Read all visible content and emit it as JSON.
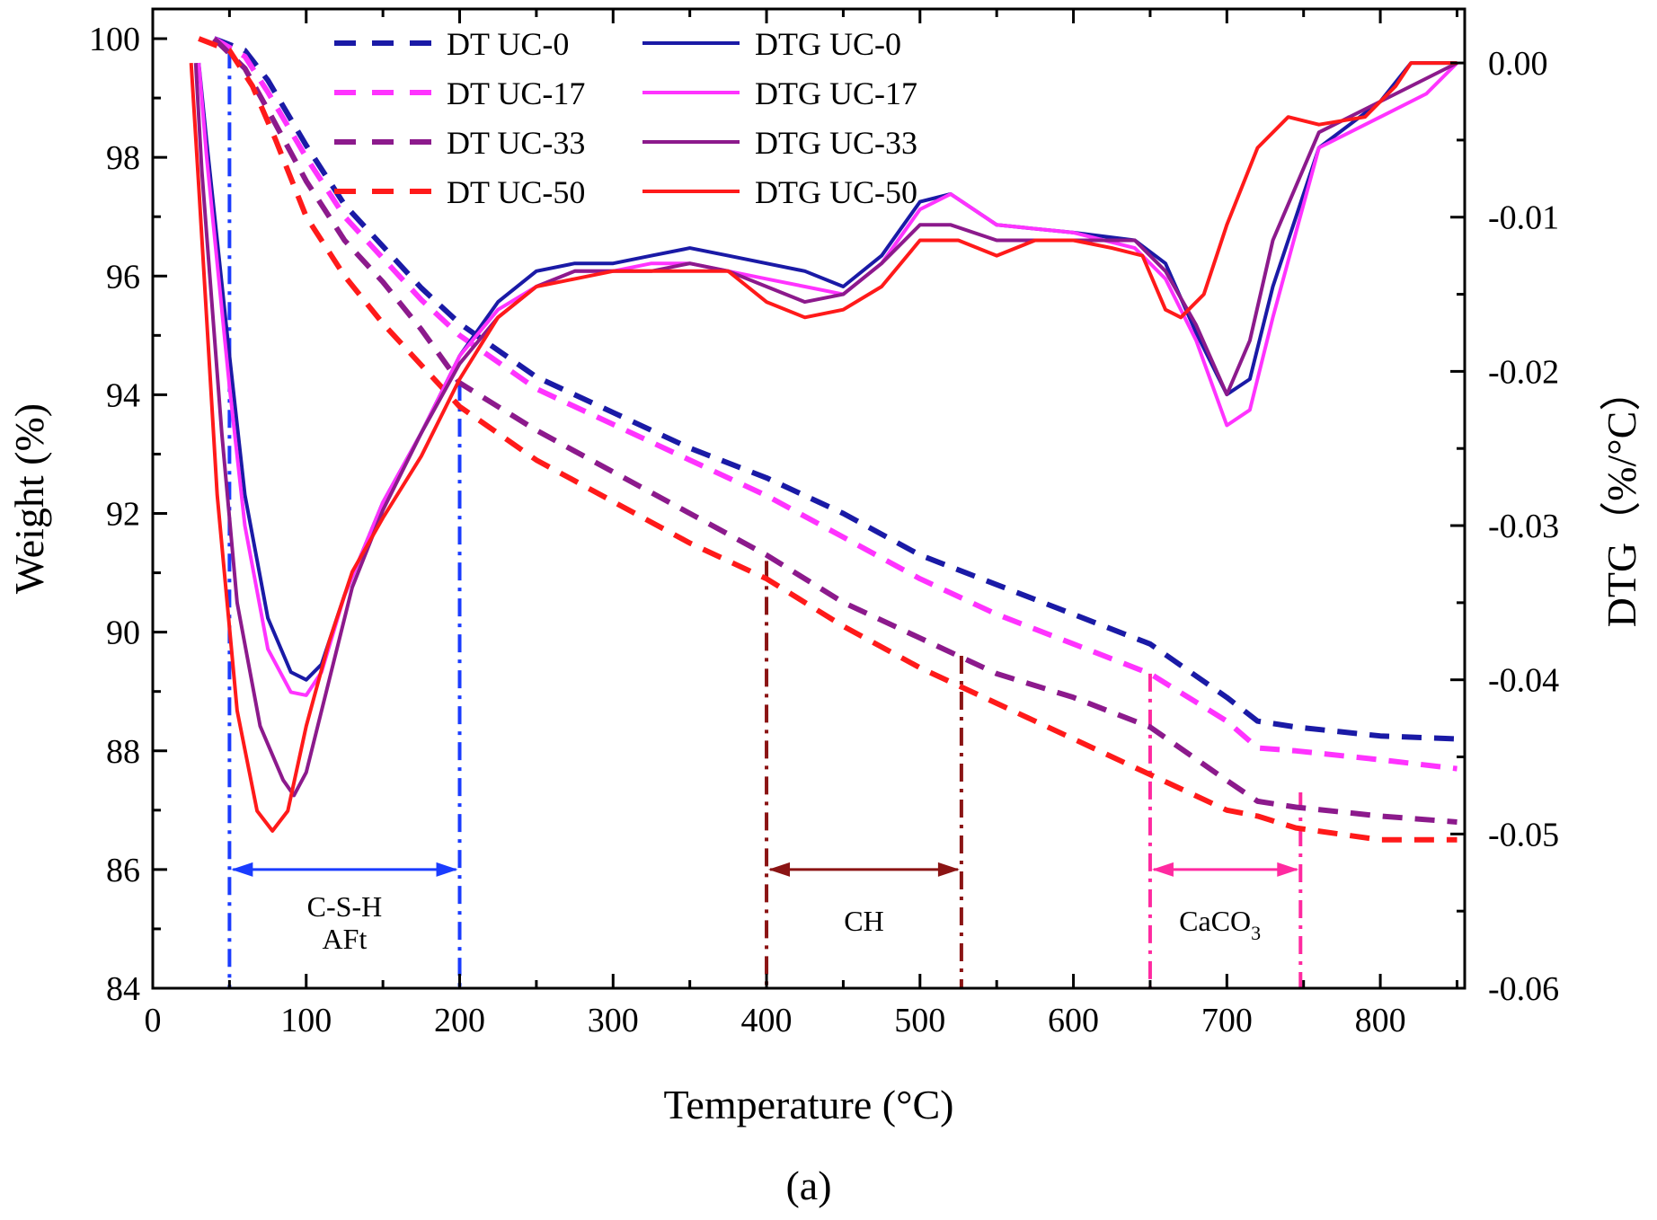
{
  "chart_data": {
    "type": "line",
    "panel_label": "(a)",
    "xlabel": "Temperature (°C)",
    "ylabel_left": "Weight (%)",
    "ylabel_right": "DTG（%/°C）",
    "xlim": [
      0,
      855
    ],
    "ylim_left": [
      84,
      100.5
    ],
    "ylim_right": [
      -0.06,
      0.0035
    ],
    "x_ticks": [
      0,
      100,
      200,
      300,
      400,
      500,
      600,
      700,
      800
    ],
    "y_left_ticks": [
      84,
      86,
      88,
      90,
      92,
      94,
      96,
      98,
      100
    ],
    "y_right_ticks": [
      0.0,
      -0.01,
      -0.02,
      -0.03,
      -0.04,
      -0.05,
      -0.06
    ],
    "y_right_tick_labels": [
      "0.00",
      "-0.01",
      "-0.02",
      "-0.03",
      "-0.04",
      "-0.05",
      "-0.06"
    ],
    "legend": {
      "placement": "top-left",
      "entries": [
        {
          "label": "DT UC-0",
          "style": "dashed"
        },
        {
          "label": "DT UC-17",
          "style": "dashed"
        },
        {
          "label": "DT UC-33",
          "style": "dashed"
        },
        {
          "label": "DT UC-50",
          "style": "dashed"
        },
        {
          "label": "DTG UC-0",
          "style": "solid"
        },
        {
          "label": "DTG UC-17",
          "style": "solid"
        },
        {
          "label": "DTG UC-33",
          "style": "solid"
        },
        {
          "label": "DTG UC-50",
          "style": "solid"
        }
      ]
    },
    "series": [
      {
        "name": "DT UC-0",
        "axis": "left",
        "style": "dashed",
        "color": "#1a1aa6",
        "x": [
          40,
          60,
          75,
          100,
          125,
          150,
          175,
          200,
          250,
          300,
          350,
          400,
          450,
          500,
          550,
          600,
          650,
          700,
          720,
          745,
          800,
          850
        ],
        "y": [
          100.0,
          99.8,
          99.3,
          98.2,
          97.2,
          96.5,
          95.8,
          95.2,
          94.3,
          93.7,
          93.1,
          92.6,
          92.0,
          91.3,
          90.8,
          90.3,
          89.8,
          88.9,
          88.5,
          88.4,
          88.25,
          88.2
        ]
      },
      {
        "name": "DT UC-17",
        "axis": "left",
        "style": "dashed",
        "color": "#ff33ff",
        "x": [
          40,
          60,
          75,
          100,
          125,
          150,
          175,
          200,
          250,
          300,
          350,
          400,
          450,
          500,
          550,
          600,
          650,
          700,
          720,
          745,
          800,
          850
        ],
        "y": [
          100.0,
          99.7,
          99.1,
          98.0,
          97.0,
          96.3,
          95.6,
          95.0,
          94.1,
          93.5,
          92.9,
          92.3,
          91.6,
          90.9,
          90.3,
          89.8,
          89.3,
          88.5,
          88.05,
          88.0,
          87.85,
          87.7
        ]
      },
      {
        "name": "DT UC-33",
        "axis": "left",
        "style": "dashed",
        "color": "#8c1a8c",
        "x": [
          40,
          60,
          75,
          100,
          125,
          150,
          175,
          200,
          250,
          300,
          350,
          400,
          450,
          500,
          550,
          600,
          650,
          700,
          720,
          745,
          800,
          850
        ],
        "y": [
          100.0,
          99.5,
          98.8,
          97.6,
          96.6,
          95.9,
          95.1,
          94.2,
          93.4,
          92.7,
          92.0,
          91.3,
          90.5,
          89.9,
          89.3,
          88.9,
          88.4,
          87.5,
          87.15,
          87.05,
          86.9,
          86.8
        ]
      },
      {
        "name": "DT UC-50",
        "axis": "left",
        "style": "dashed",
        "color": "#ff1a1a",
        "x": [
          30,
          50,
          65,
          80,
          100,
          125,
          150,
          175,
          200,
          250,
          300,
          350,
          400,
          450,
          500,
          550,
          600,
          650,
          700,
          720,
          745,
          800,
          850
        ],
        "y": [
          100.0,
          99.8,
          99.2,
          98.3,
          97.0,
          96.0,
          95.2,
          94.5,
          93.8,
          92.9,
          92.2,
          91.5,
          90.9,
          90.1,
          89.4,
          88.8,
          88.2,
          87.6,
          87.0,
          86.9,
          86.7,
          86.5,
          86.5
        ]
      },
      {
        "name": "DTG UC-0",
        "axis": "right",
        "style": "solid",
        "color": "#1a1aa6",
        "x": [
          30,
          35,
          50,
          60,
          75,
          90,
          100,
          110,
          125,
          150,
          175,
          200,
          225,
          250,
          275,
          300,
          325,
          350,
          375,
          400,
          425,
          450,
          475,
          500,
          520,
          550,
          600,
          640,
          660,
          680,
          700,
          715,
          730,
          760,
          800,
          820,
          850
        ],
        "y": [
          0.0,
          -0.005,
          -0.019,
          -0.028,
          -0.036,
          -0.0395,
          -0.04,
          -0.039,
          -0.0345,
          -0.0285,
          -0.024,
          -0.019,
          -0.0155,
          -0.0135,
          -0.013,
          -0.013,
          -0.0125,
          -0.012,
          -0.0125,
          -0.013,
          -0.0135,
          -0.0145,
          -0.0125,
          -0.009,
          -0.0085,
          -0.0105,
          -0.011,
          -0.0115,
          -0.013,
          -0.0175,
          -0.0215,
          -0.0205,
          -0.0145,
          -0.0055,
          -0.0025,
          0.0,
          0.0
        ]
      },
      {
        "name": "DTG UC-17",
        "axis": "right",
        "style": "solid",
        "color": "#ff33ff",
        "x": [
          30,
          35,
          50,
          60,
          75,
          90,
          100,
          110,
          125,
          150,
          175,
          200,
          225,
          250,
          275,
          300,
          325,
          350,
          375,
          400,
          425,
          450,
          475,
          500,
          520,
          550,
          600,
          640,
          660,
          680,
          700,
          715,
          730,
          760,
          800,
          830,
          850
        ],
        "y": [
          0.0,
          -0.006,
          -0.021,
          -0.03,
          -0.038,
          -0.0408,
          -0.041,
          -0.0395,
          -0.0345,
          -0.0285,
          -0.024,
          -0.019,
          -0.016,
          -0.0145,
          -0.0135,
          -0.0135,
          -0.013,
          -0.013,
          -0.0135,
          -0.014,
          -0.0145,
          -0.015,
          -0.013,
          -0.0095,
          -0.0085,
          -0.0105,
          -0.011,
          -0.012,
          -0.014,
          -0.018,
          -0.0235,
          -0.0225,
          -0.0165,
          -0.0055,
          -0.0035,
          -0.002,
          0.0
        ]
      },
      {
        "name": "DTG UC-33",
        "axis": "right",
        "style": "solid",
        "color": "#8c1a8c",
        "x": [
          28,
          32,
          45,
          55,
          70,
          85,
          92,
          100,
          115,
          130,
          150,
          175,
          200,
          225,
          250,
          275,
          300,
          325,
          350,
          375,
          400,
          425,
          450,
          475,
          500,
          520,
          550,
          600,
          640,
          660,
          680,
          700,
          715,
          730,
          760,
          800,
          850
        ],
        "y": [
          0.0,
          -0.007,
          -0.024,
          -0.035,
          -0.043,
          -0.0465,
          -0.0475,
          -0.046,
          -0.04,
          -0.034,
          -0.029,
          -0.024,
          -0.0195,
          -0.0165,
          -0.0145,
          -0.0135,
          -0.0135,
          -0.0135,
          -0.013,
          -0.0135,
          -0.0145,
          -0.0155,
          -0.015,
          -0.013,
          -0.0105,
          -0.0105,
          -0.0115,
          -0.0115,
          -0.0115,
          -0.0135,
          -0.017,
          -0.0215,
          -0.018,
          -0.0115,
          -0.0045,
          -0.0025,
          0.0
        ]
      },
      {
        "name": "DTG UC-50",
        "axis": "right",
        "style": "solid",
        "color": "#ff1a1a",
        "x": [
          25,
          30,
          42,
          55,
          68,
          78,
          88,
          100,
          115,
          130,
          150,
          175,
          200,
          225,
          250,
          275,
          300,
          325,
          350,
          375,
          400,
          425,
          450,
          475,
          500,
          525,
          550,
          575,
          600,
          625,
          645,
          660,
          670,
          685,
          700,
          720,
          740,
          760,
          790,
          810,
          820,
          850
        ],
        "y": [
          0.0,
          -0.008,
          -0.028,
          -0.042,
          -0.0485,
          -0.0498,
          -0.0485,
          -0.043,
          -0.0375,
          -0.033,
          -0.0295,
          -0.0255,
          -0.0205,
          -0.0165,
          -0.0145,
          -0.014,
          -0.0135,
          -0.0135,
          -0.0135,
          -0.0135,
          -0.0155,
          -0.0165,
          -0.016,
          -0.0145,
          -0.0115,
          -0.0115,
          -0.0125,
          -0.0115,
          -0.0115,
          -0.012,
          -0.0125,
          -0.016,
          -0.0165,
          -0.015,
          -0.0105,
          -0.0055,
          -0.0035,
          -0.004,
          -0.0035,
          -0.0015,
          0.0,
          0.0
        ]
      }
    ],
    "annotations": [
      {
        "label_lines": [
          "C-S-H",
          "AFt"
        ],
        "x_start": 50,
        "x_end": 200,
        "color": "#1a3cff"
      },
      {
        "label_lines": [
          "CH"
        ],
        "x_start": 400,
        "x_end": 527,
        "color": "#8b1414"
      },
      {
        "label_lines": [
          "CaCO",
          "3"
        ],
        "x_start": 650,
        "x_end": 748,
        "color": "#ff2aa0"
      }
    ]
  }
}
